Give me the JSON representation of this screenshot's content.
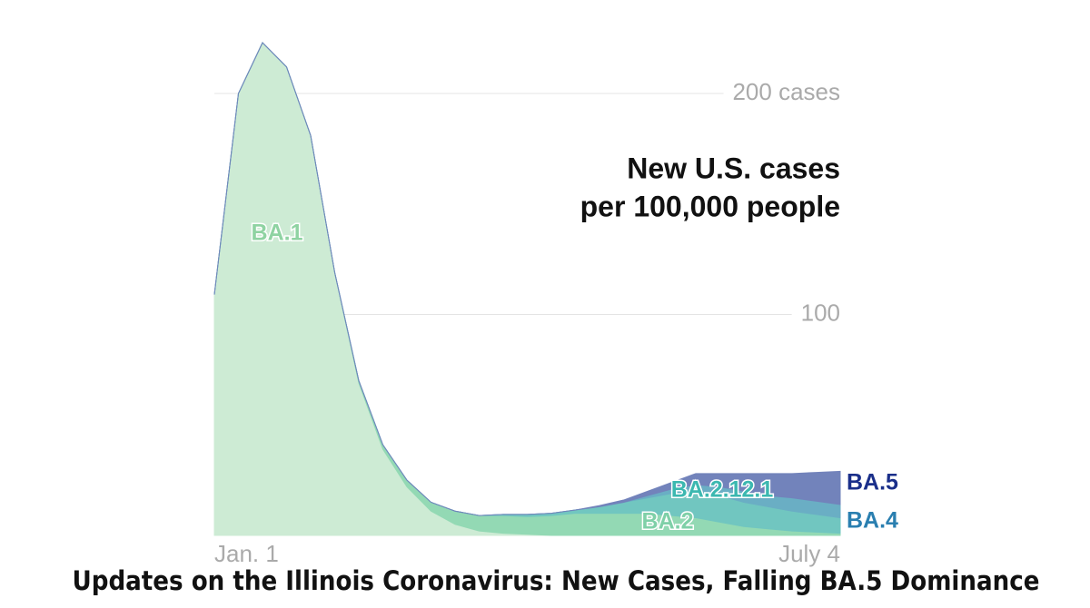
{
  "chart_data": {
    "type": "stacked_area",
    "title": "Updates on the Illinois Coronavirus: New Cases, Falling BA.5 Dominance",
    "annotation": [
      "New U.S. cases",
      "per 100,000 people"
    ],
    "categories": [
      "Jan. 1",
      null,
      null,
      null,
      null,
      null,
      null,
      null,
      null,
      null,
      null,
      null,
      null,
      null,
      null,
      null,
      null,
      null,
      null,
      null,
      null,
      null,
      null,
      null,
      null,
      null,
      "July 4"
    ],
    "series": [
      {
        "name": "BA.1",
        "color": "#cdebd4",
        "label_color": "#8fd3a2",
        "values": [
          109,
          200,
          223,
          212,
          181,
          119,
          69,
          39,
          22,
          11,
          5,
          2,
          1,
          0.5,
          0,
          0,
          0,
          0,
          0,
          0,
          0,
          0,
          0,
          0,
          0,
          0,
          0
        ]
      },
      {
        "name": "BA.2",
        "color": "#93d9b4",
        "label_color": "#7fd0a8",
        "values": [
          0,
          0,
          0,
          0,
          0,
          0,
          1,
          2,
          3,
          4,
          6,
          7,
          8,
          8,
          9,
          10,
          10,
          10,
          10,
          9,
          8,
          6,
          4,
          3,
          2,
          1.5,
          1
        ]
      },
      {
        "name": "BA.2.12.1",
        "color": "#71c6c0",
        "label_color": "#3cb8b0",
        "values": [
          0,
          0,
          0,
          0,
          0,
          0,
          0,
          0,
          0,
          0,
          0,
          0,
          0.5,
          1,
          1,
          1.5,
          3,
          5,
          7,
          10,
          12,
          12,
          11,
          10,
          9,
          8,
          7
        ]
      },
      {
        "name": "BA.4",
        "color": "#6aaec4",
        "label_color": "#2a7fb0",
        "values": [
          0,
          0,
          0,
          0,
          0,
          0,
          0,
          0,
          0,
          0,
          0,
          0,
          0,
          0,
          0,
          0,
          0,
          0,
          1,
          2,
          3,
          4,
          5,
          5,
          6,
          6,
          6
        ]
      },
      {
        "name": "BA.5",
        "color": "#7283bb",
        "label_color": "#1a2f8a",
        "values": [
          0,
          0,
          0,
          0,
          0,
          0,
          0,
          0,
          0,
          0,
          0,
          0,
          0,
          0,
          0,
          0,
          0.5,
          1,
          2,
          3,
          5,
          6,
          8,
          10,
          11,
          13,
          15
        ]
      }
    ],
    "ylim": [
      0,
      230
    ],
    "yticks": [
      {
        "value": 100,
        "label": "100"
      },
      {
        "value": 200,
        "label": "200 cases"
      }
    ],
    "grid": true
  }
}
